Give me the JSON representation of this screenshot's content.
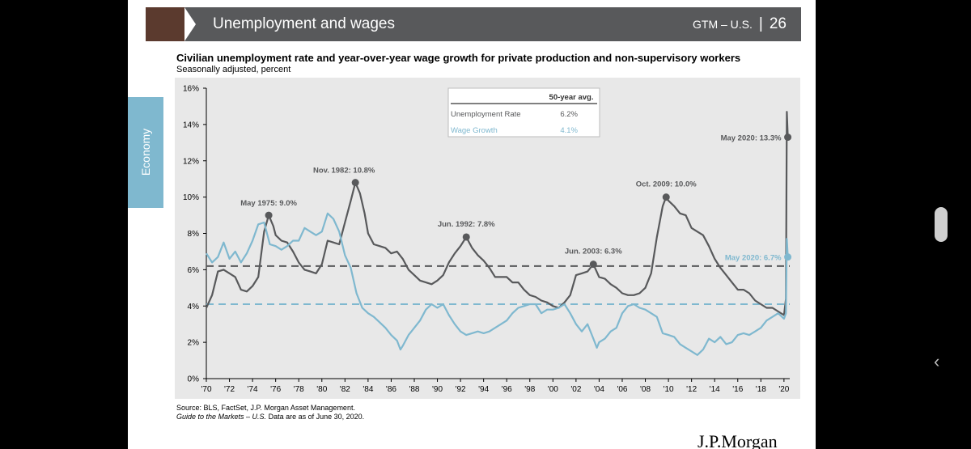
{
  "header": {
    "title": "Unemployment and wages",
    "guide": "GTM – U.S.",
    "page": "26"
  },
  "side_tab": "Economy",
  "chart_title": "Civilian unemployment rate and year-over-year wage growth for private production and non-supervisory workers",
  "chart_subtitle": "Seasonally adjusted, percent",
  "footer": {
    "source": "Source: BLS, FactSet, J.P. Morgan Asset Management.",
    "guide_italic": "Guide to the Markets – U.S.",
    "date_text": " Data are as of June 30, 2020."
  },
  "logo": "J.P.Morgan",
  "colors": {
    "unemployment": "#58595b",
    "wage_growth": "#7fb8cf",
    "header": "#58595b",
    "accent": "#5b3a2e"
  },
  "icons": [
    "scroll-handle",
    "chevron-left-icon"
  ],
  "chart_data": {
    "type": "line",
    "x_unit": "year",
    "xlim": [
      1970,
      2020.5
    ],
    "ylim": [
      0,
      16
    ],
    "x_ticks": [
      1970,
      1972,
      1974,
      1976,
      1978,
      1980,
      1982,
      1984,
      1986,
      1988,
      1990,
      1992,
      1994,
      1996,
      1998,
      2000,
      2002,
      2004,
      2006,
      2008,
      2010,
      2012,
      2014,
      2016,
      2018,
      2020
    ],
    "x_tick_labels": [
      "'70",
      "'72",
      "'74",
      "'76",
      "'78",
      "'80",
      "'82",
      "'84",
      "'86",
      "'88",
      "'90",
      "'92",
      "'94",
      "'96",
      "'98",
      "'00",
      "'02",
      "'04",
      "'06",
      "'08",
      "'10",
      "'12",
      "'14",
      "'16",
      "'18",
      "'20"
    ],
    "y_ticks": [
      0,
      2,
      4,
      6,
      8,
      10,
      12,
      14,
      16
    ],
    "y_tick_labels": [
      "0%",
      "2%",
      "4%",
      "6%",
      "8%",
      "10%",
      "12%",
      "14%",
      "16%"
    ],
    "grid": false,
    "legend_table": {
      "header": "50-year avg.",
      "rows": [
        {
          "label": "Unemployment Rate",
          "value": "6.2%"
        },
        {
          "label": "Wage Growth",
          "value": "4.1%"
        }
      ]
    },
    "averages": [
      {
        "series": "Unemployment Rate",
        "value": 6.2
      },
      {
        "series": "Wage Growth",
        "value": 4.1
      }
    ],
    "series": [
      {
        "name": "Unemployment Rate",
        "points": [
          [
            1970.0,
            3.9
          ],
          [
            1970.5,
            4.6
          ],
          [
            1971.0,
            5.9
          ],
          [
            1971.5,
            6.0
          ],
          [
            1972.0,
            5.8
          ],
          [
            1972.5,
            5.6
          ],
          [
            1973.0,
            4.9
          ],
          [
            1973.5,
            4.8
          ],
          [
            1974.0,
            5.1
          ],
          [
            1974.5,
            5.6
          ],
          [
            1975.0,
            8.1
          ],
          [
            1975.4,
            9.0
          ],
          [
            1975.8,
            8.4
          ],
          [
            1976.0,
            7.9
          ],
          [
            1976.5,
            7.6
          ],
          [
            1977.0,
            7.5
          ],
          [
            1977.5,
            7.0
          ],
          [
            1978.0,
            6.4
          ],
          [
            1978.5,
            6.0
          ],
          [
            1979.0,
            5.9
          ],
          [
            1979.5,
            5.8
          ],
          [
            1980.0,
            6.3
          ],
          [
            1980.5,
            7.6
          ],
          [
            1981.0,
            7.5
          ],
          [
            1981.5,
            7.4
          ],
          [
            1982.0,
            8.6
          ],
          [
            1982.5,
            9.8
          ],
          [
            1982.9,
            10.8
          ],
          [
            1983.3,
            10.2
          ],
          [
            1983.7,
            9.1
          ],
          [
            1984.0,
            8.0
          ],
          [
            1984.5,
            7.4
          ],
          [
            1985.0,
            7.3
          ],
          [
            1985.5,
            7.2
          ],
          [
            1986.0,
            6.9
          ],
          [
            1986.5,
            7.0
          ],
          [
            1987.0,
            6.6
          ],
          [
            1987.5,
            6.0
          ],
          [
            1988.0,
            5.7
          ],
          [
            1988.5,
            5.4
          ],
          [
            1989.0,
            5.3
          ],
          [
            1989.5,
            5.2
          ],
          [
            1990.0,
            5.4
          ],
          [
            1990.5,
            5.7
          ],
          [
            1991.0,
            6.4
          ],
          [
            1991.5,
            6.9
          ],
          [
            1992.0,
            7.3
          ],
          [
            1992.5,
            7.8
          ],
          [
            1993.0,
            7.2
          ],
          [
            1993.5,
            6.8
          ],
          [
            1994.0,
            6.5
          ],
          [
            1994.5,
            6.1
          ],
          [
            1995.0,
            5.6
          ],
          [
            1995.5,
            5.6
          ],
          [
            1996.0,
            5.6
          ],
          [
            1996.5,
            5.3
          ],
          [
            1997.0,
            5.3
          ],
          [
            1997.5,
            4.9
          ],
          [
            1998.0,
            4.6
          ],
          [
            1998.5,
            4.5
          ],
          [
            1999.0,
            4.3
          ],
          [
            1999.5,
            4.2
          ],
          [
            2000.0,
            4.0
          ],
          [
            2000.5,
            3.9
          ],
          [
            2001.0,
            4.2
          ],
          [
            2001.5,
            4.6
          ],
          [
            2002.0,
            5.7
          ],
          [
            2002.5,
            5.8
          ],
          [
            2003.0,
            5.9
          ],
          [
            2003.5,
            6.3
          ],
          [
            2004.0,
            5.6
          ],
          [
            2004.5,
            5.5
          ],
          [
            2005.0,
            5.2
          ],
          [
            2005.5,
            5.0
          ],
          [
            2006.0,
            4.7
          ],
          [
            2006.5,
            4.6
          ],
          [
            2007.0,
            4.6
          ],
          [
            2007.5,
            4.7
          ],
          [
            2008.0,
            5.0
          ],
          [
            2008.5,
            5.8
          ],
          [
            2009.0,
            7.8
          ],
          [
            2009.5,
            9.5
          ],
          [
            2009.8,
            10.0
          ],
          [
            2010.0,
            9.8
          ],
          [
            2010.5,
            9.5
          ],
          [
            2011.0,
            9.1
          ],
          [
            2011.5,
            9.0
          ],
          [
            2012.0,
            8.3
          ],
          [
            2012.5,
            8.1
          ],
          [
            2013.0,
            7.9
          ],
          [
            2013.5,
            7.3
          ],
          [
            2014.0,
            6.6
          ],
          [
            2014.5,
            6.1
          ],
          [
            2015.0,
            5.7
          ],
          [
            2015.5,
            5.3
          ],
          [
            2016.0,
            4.9
          ],
          [
            2016.5,
            4.9
          ],
          [
            2017.0,
            4.7
          ],
          [
            2017.5,
            4.3
          ],
          [
            2018.0,
            4.1
          ],
          [
            2018.5,
            3.9
          ],
          [
            2019.0,
            3.9
          ],
          [
            2019.5,
            3.7
          ],
          [
            2020.0,
            3.5
          ],
          [
            2020.17,
            4.4
          ],
          [
            2020.25,
            14.7
          ],
          [
            2020.33,
            13.3
          ]
        ]
      },
      {
        "name": "Wage Growth",
        "points": [
          [
            1970.0,
            6.9
          ],
          [
            1970.5,
            6.4
          ],
          [
            1971.0,
            6.7
          ],
          [
            1971.5,
            7.5
          ],
          [
            1972.0,
            6.6
          ],
          [
            1972.5,
            7.0
          ],
          [
            1973.0,
            6.4
          ],
          [
            1973.5,
            6.9
          ],
          [
            1974.0,
            7.6
          ],
          [
            1974.5,
            8.5
          ],
          [
            1975.0,
            8.6
          ],
          [
            1975.5,
            7.4
          ],
          [
            1976.0,
            7.3
          ],
          [
            1976.5,
            7.1
          ],
          [
            1977.0,
            7.3
          ],
          [
            1977.5,
            7.6
          ],
          [
            1978.0,
            7.6
          ],
          [
            1978.5,
            8.3
          ],
          [
            1979.0,
            8.1
          ],
          [
            1979.5,
            7.9
          ],
          [
            1980.0,
            8.1
          ],
          [
            1980.5,
            9.1
          ],
          [
            1981.0,
            8.8
          ],
          [
            1981.5,
            8.1
          ],
          [
            1982.0,
            6.8
          ],
          [
            1982.5,
            6.1
          ],
          [
            1983.0,
            4.7
          ],
          [
            1983.5,
            3.9
          ],
          [
            1984.0,
            3.6
          ],
          [
            1984.5,
            3.4
          ],
          [
            1985.0,
            3.1
          ],
          [
            1985.5,
            2.8
          ],
          [
            1986.0,
            2.4
          ],
          [
            1986.5,
            2.1
          ],
          [
            1986.8,
            1.6
          ],
          [
            1987.0,
            1.8
          ],
          [
            1987.5,
            2.4
          ],
          [
            1988.0,
            2.8
          ],
          [
            1988.5,
            3.2
          ],
          [
            1989.0,
            3.8
          ],
          [
            1989.5,
            4.1
          ],
          [
            1990.0,
            3.9
          ],
          [
            1990.5,
            4.1
          ],
          [
            1991.0,
            3.5
          ],
          [
            1991.5,
            3.0
          ],
          [
            1992.0,
            2.6
          ],
          [
            1992.5,
            2.4
          ],
          [
            1993.0,
            2.5
          ],
          [
            1993.5,
            2.6
          ],
          [
            1994.0,
            2.5
          ],
          [
            1994.5,
            2.6
          ],
          [
            1995.0,
            2.8
          ],
          [
            1995.5,
            3.0
          ],
          [
            1996.0,
            3.2
          ],
          [
            1996.5,
            3.6
          ],
          [
            1997.0,
            3.9
          ],
          [
            1997.5,
            4.0
          ],
          [
            1998.0,
            4.1
          ],
          [
            1998.5,
            4.1
          ],
          [
            1999.0,
            3.6
          ],
          [
            1999.5,
            3.8
          ],
          [
            2000.0,
            3.8
          ],
          [
            2000.5,
            3.9
          ],
          [
            2001.0,
            4.1
          ],
          [
            2001.5,
            3.6
          ],
          [
            2002.0,
            3.0
          ],
          [
            2002.5,
            2.6
          ],
          [
            2003.0,
            3.0
          ],
          [
            2003.5,
            2.2
          ],
          [
            2003.8,
            1.7
          ],
          [
            2004.0,
            2.0
          ],
          [
            2004.5,
            2.2
          ],
          [
            2005.0,
            2.6
          ],
          [
            2005.5,
            2.8
          ],
          [
            2006.0,
            3.6
          ],
          [
            2006.5,
            4.0
          ],
          [
            2007.0,
            4.1
          ],
          [
            2007.5,
            3.9
          ],
          [
            2008.0,
            3.8
          ],
          [
            2008.5,
            3.6
          ],
          [
            2009.0,
            3.4
          ],
          [
            2009.5,
            2.5
          ],
          [
            2010.0,
            2.4
          ],
          [
            2010.5,
            2.3
          ],
          [
            2011.0,
            1.9
          ],
          [
            2011.5,
            1.7
          ],
          [
            2012.0,
            1.5
          ],
          [
            2012.5,
            1.3
          ],
          [
            2013.0,
            1.6
          ],
          [
            2013.5,
            2.2
          ],
          [
            2014.0,
            2.0
          ],
          [
            2014.5,
            2.3
          ],
          [
            2015.0,
            1.9
          ],
          [
            2015.5,
            2.0
          ],
          [
            2016.0,
            2.4
          ],
          [
            2016.5,
            2.5
          ],
          [
            2017.0,
            2.4
          ],
          [
            2017.5,
            2.6
          ],
          [
            2018.0,
            2.8
          ],
          [
            2018.5,
            3.2
          ],
          [
            2019.0,
            3.4
          ],
          [
            2019.5,
            3.6
          ],
          [
            2020.0,
            3.3
          ],
          [
            2020.17,
            3.6
          ],
          [
            2020.25,
            7.7
          ],
          [
            2020.33,
            6.7
          ]
        ]
      }
    ],
    "annotations": [
      {
        "label": "May 1975: 9.0%",
        "x": 1975.4,
        "y": 9.0,
        "series": "Unemployment Rate"
      },
      {
        "label": "Nov. 1982: 10.8%",
        "x": 1982.9,
        "y": 10.8,
        "series": "Unemployment Rate"
      },
      {
        "label": "Jun. 1992: 7.8%",
        "x": 1992.5,
        "y": 7.8,
        "series": "Unemployment Rate"
      },
      {
        "label": "Jun. 2003: 6.3%",
        "x": 2003.5,
        "y": 6.3,
        "series": "Unemployment Rate"
      },
      {
        "label": "Oct. 2009: 10.0%",
        "x": 2009.8,
        "y": 10.0,
        "series": "Unemployment Rate"
      },
      {
        "label": "May 2020: 13.3%",
        "x": 2020.33,
        "y": 13.3,
        "series": "Unemployment Rate"
      },
      {
        "label": "May 2020: 6.7%",
        "x": 2020.33,
        "y": 6.7,
        "series": "Wage Growth"
      }
    ]
  }
}
